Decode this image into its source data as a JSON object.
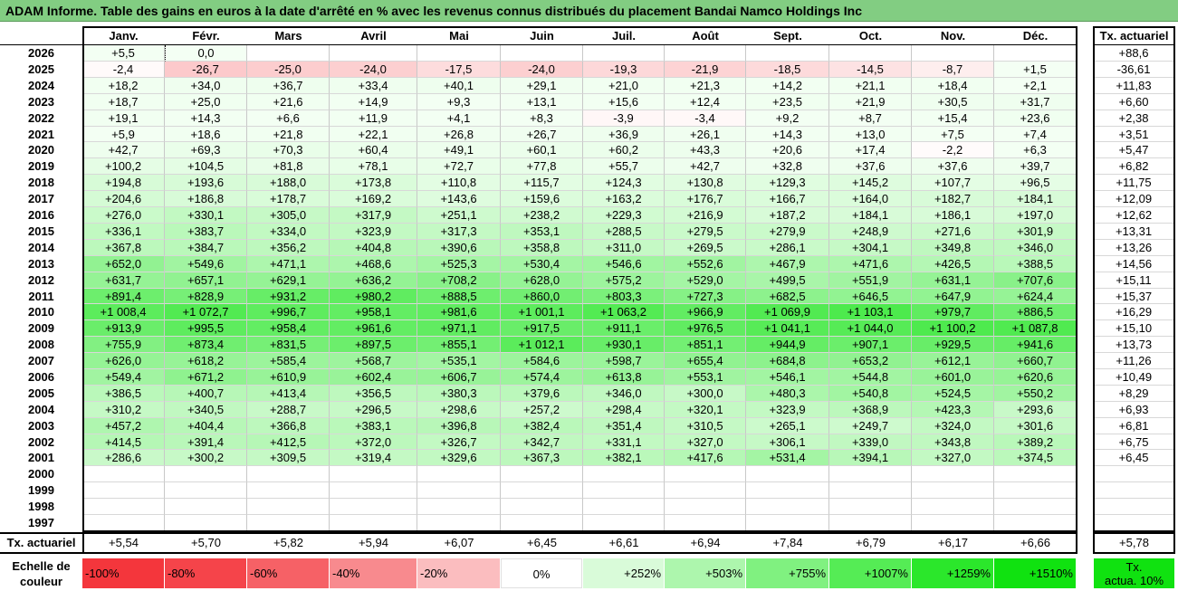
{
  "title": "ADAM Informe. Table des gains en euros à la date d'arrêté en % avec les revenus connus distribués du placement Bandai Namco Holdings Inc",
  "months": [
    "Janv.",
    "Févr.",
    "Mars",
    "Avril",
    "Mai",
    "Juin",
    "Juil.",
    "Août",
    "Sept.",
    "Oct.",
    "Nov.",
    "Déc."
  ],
  "rate_header": "Tx. actuariel",
  "rows": [
    {
      "year": "2026",
      "values": [
        "+5,5",
        "0,0",
        "",
        "",
        "",
        "",
        "",
        "",
        "",
        "",
        "",
        ""
      ],
      "rate": "+88,6"
    },
    {
      "year": "2025",
      "values": [
        "-2,4",
        "-26,7",
        "-25,0",
        "-24,0",
        "-17,5",
        "-24,0",
        "-19,3",
        "-21,9",
        "-18,5",
        "-14,5",
        "-8,7",
        "+1,5"
      ],
      "rate": "-36,61"
    },
    {
      "year": "2024",
      "values": [
        "+18,2",
        "+34,0",
        "+36,7",
        "+33,4",
        "+40,1",
        "+29,1",
        "+21,0",
        "+21,3",
        "+14,2",
        "+21,1",
        "+18,4",
        "+2,1"
      ],
      "rate": "+11,83"
    },
    {
      "year": "2023",
      "values": [
        "+18,7",
        "+25,0",
        "+21,6",
        "+14,9",
        "+9,3",
        "+13,1",
        "+15,6",
        "+12,4",
        "+23,5",
        "+21,9",
        "+30,5",
        "+31,7"
      ],
      "rate": "+6,60"
    },
    {
      "year": "2022",
      "values": [
        "+19,1",
        "+14,3",
        "+6,6",
        "+11,9",
        "+4,1",
        "+8,3",
        "-3,9",
        "-3,4",
        "+9,2",
        "+8,7",
        "+15,4",
        "+23,6"
      ],
      "rate": "+2,38"
    },
    {
      "year": "2021",
      "values": [
        "+5,9",
        "+18,6",
        "+21,8",
        "+22,1",
        "+26,8",
        "+26,7",
        "+36,9",
        "+26,1",
        "+14,3",
        "+13,0",
        "+7,5",
        "+7,4"
      ],
      "rate": "+3,51"
    },
    {
      "year": "2020",
      "values": [
        "+42,7",
        "+69,3",
        "+70,3",
        "+60,4",
        "+49,1",
        "+60,1",
        "+60,2",
        "+43,3",
        "+20,6",
        "+17,4",
        "-2,2",
        "+6,3"
      ],
      "rate": "+5,47"
    },
    {
      "year": "2019",
      "values": [
        "+100,2",
        "+104,5",
        "+81,8",
        "+78,1",
        "+72,7",
        "+77,8",
        "+55,7",
        "+42,7",
        "+32,8",
        "+37,6",
        "+37,6",
        "+39,7"
      ],
      "rate": "+6,82"
    },
    {
      "year": "2018",
      "values": [
        "+194,8",
        "+193,6",
        "+188,0",
        "+173,8",
        "+110,8",
        "+115,7",
        "+124,3",
        "+130,8",
        "+129,3",
        "+145,2",
        "+107,7",
        "+96,5"
      ],
      "rate": "+11,75"
    },
    {
      "year": "2017",
      "values": [
        "+204,6",
        "+186,8",
        "+178,7",
        "+169,2",
        "+143,6",
        "+159,6",
        "+163,2",
        "+176,7",
        "+166,7",
        "+164,0",
        "+182,7",
        "+184,1"
      ],
      "rate": "+12,09"
    },
    {
      "year": "2016",
      "values": [
        "+276,0",
        "+330,1",
        "+305,0",
        "+317,9",
        "+251,1",
        "+238,2",
        "+229,3",
        "+216,9",
        "+187,2",
        "+184,1",
        "+186,1",
        "+197,0"
      ],
      "rate": "+12,62"
    },
    {
      "year": "2015",
      "values": [
        "+336,1",
        "+383,7",
        "+334,0",
        "+323,9",
        "+317,3",
        "+353,1",
        "+288,5",
        "+279,5",
        "+279,9",
        "+248,9",
        "+271,6",
        "+301,9"
      ],
      "rate": "+13,31"
    },
    {
      "year": "2014",
      "values": [
        "+367,8",
        "+384,7",
        "+356,2",
        "+404,8",
        "+390,6",
        "+358,8",
        "+311,0",
        "+269,5",
        "+286,1",
        "+304,1",
        "+349,8",
        "+346,0"
      ],
      "rate": "+13,26"
    },
    {
      "year": "2013",
      "values": [
        "+652,0",
        "+549,6",
        "+471,1",
        "+468,6",
        "+525,3",
        "+530,4",
        "+546,6",
        "+552,6",
        "+467,9",
        "+471,6",
        "+426,5",
        "+388,5"
      ],
      "rate": "+14,56"
    },
    {
      "year": "2012",
      "values": [
        "+631,7",
        "+657,1",
        "+629,1",
        "+636,2",
        "+708,2",
        "+628,0",
        "+575,2",
        "+529,0",
        "+499,5",
        "+551,9",
        "+631,1",
        "+707,6"
      ],
      "rate": "+15,11"
    },
    {
      "year": "2011",
      "values": [
        "+891,4",
        "+828,9",
        "+931,2",
        "+980,2",
        "+888,5",
        "+860,0",
        "+803,3",
        "+727,3",
        "+682,5",
        "+646,5",
        "+647,9",
        "+624,4"
      ],
      "rate": "+15,37"
    },
    {
      "year": "2010",
      "values": [
        "+1 008,4",
        "+1 072,7",
        "+996,7",
        "+958,1",
        "+981,6",
        "+1 001,1",
        "+1 063,2",
        "+966,9",
        "+1 069,9",
        "+1 103,1",
        "+979,7",
        "+886,5"
      ],
      "rate": "+16,29"
    },
    {
      "year": "2009",
      "values": [
        "+913,9",
        "+995,5",
        "+958,4",
        "+961,6",
        "+971,1",
        "+917,5",
        "+911,1",
        "+976,5",
        "+1 041,1",
        "+1 044,0",
        "+1 100,2",
        "+1 087,8"
      ],
      "rate": "+15,10"
    },
    {
      "year": "2008",
      "values": [
        "+755,9",
        "+873,4",
        "+831,5",
        "+897,5",
        "+855,1",
        "+1 012,1",
        "+930,1",
        "+851,1",
        "+944,9",
        "+907,1",
        "+929,5",
        "+941,6"
      ],
      "rate": "+13,73"
    },
    {
      "year": "2007",
      "values": [
        "+626,0",
        "+618,2",
        "+585,4",
        "+568,7",
        "+535,1",
        "+584,6",
        "+598,7",
        "+655,4",
        "+684,8",
        "+653,2",
        "+612,1",
        "+660,7"
      ],
      "rate": "+11,26"
    },
    {
      "year": "2006",
      "values": [
        "+549,4",
        "+671,2",
        "+610,9",
        "+602,4",
        "+606,7",
        "+574,4",
        "+613,8",
        "+553,1",
        "+546,1",
        "+544,8",
        "+601,0",
        "+620,6"
      ],
      "rate": "+10,49"
    },
    {
      "year": "2005",
      "values": [
        "+386,5",
        "+400,7",
        "+413,4",
        "+356,5",
        "+380,3",
        "+379,6",
        "+346,0",
        "+300,0",
        "+480,3",
        "+540,8",
        "+524,5",
        "+550,2"
      ],
      "rate": "+8,29"
    },
    {
      "year": "2004",
      "values": [
        "+310,2",
        "+340,5",
        "+288,7",
        "+296,5",
        "+298,6",
        "+257,2",
        "+298,4",
        "+320,1",
        "+323,9",
        "+368,9",
        "+423,3",
        "+293,6"
      ],
      "rate": "+6,93"
    },
    {
      "year": "2003",
      "values": [
        "+457,2",
        "+404,4",
        "+366,8",
        "+383,1",
        "+396,8",
        "+382,4",
        "+351,4",
        "+310,5",
        "+265,1",
        "+249,7",
        "+324,0",
        "+301,6"
      ],
      "rate": "+6,81"
    },
    {
      "year": "2002",
      "values": [
        "+414,5",
        "+391,4",
        "+412,5",
        "+372,0",
        "+326,7",
        "+342,7",
        "+331,1",
        "+327,0",
        "+306,1",
        "+339,0",
        "+343,8",
        "+389,2"
      ],
      "rate": "+6,75"
    },
    {
      "year": "2001",
      "values": [
        "+286,6",
        "+300,2",
        "+309,5",
        "+319,4",
        "+329,6",
        "+367,3",
        "+382,1",
        "+417,6",
        "+531,4",
        "+394,1",
        "+327,0",
        "+374,5"
      ],
      "rate": "+6,45"
    },
    {
      "year": "2000",
      "values": [
        "",
        "",
        "",
        "",
        "",
        "",
        "",
        "",
        "",
        "",
        "",
        ""
      ],
      "rate": ""
    },
    {
      "year": "1999",
      "values": [
        "",
        "",
        "",
        "",
        "",
        "",
        "",
        "",
        "",
        "",
        "",
        ""
      ],
      "rate": ""
    },
    {
      "year": "1998",
      "values": [
        "",
        "",
        "",
        "",
        "",
        "",
        "",
        "",
        "",
        "",
        "",
        ""
      ],
      "rate": ""
    },
    {
      "year": "1997",
      "values": [
        "",
        "",
        "",
        "",
        "",
        "",
        "",
        "",
        "",
        "",
        "",
        ""
      ],
      "rate": ""
    }
  ],
  "footer": {
    "label": "Tx. actuariel",
    "values": [
      "+5,54",
      "+5,70",
      "+5,82",
      "+5,94",
      "+6,07",
      "+6,45",
      "+6,61",
      "+6,94",
      "+7,84",
      "+6,79",
      "+6,17",
      "+6,66"
    ],
    "rate": "+5,78"
  },
  "legend": {
    "label_line1": "Echelle de",
    "label_line2": "couleur",
    "items": [
      {
        "text": "-100%",
        "color": "#f4363c",
        "align": "left"
      },
      {
        "text": "-80%",
        "color": "#f5444a",
        "align": "left"
      },
      {
        "text": "-60%",
        "color": "#f66166",
        "align": "left"
      },
      {
        "text": "-40%",
        "color": "#f88a8e",
        "align": "left"
      },
      {
        "text": "-20%",
        "color": "#fbbdbf",
        "align": "left"
      },
      {
        "text": "0%",
        "color": "#ffffff",
        "align": "center"
      },
      {
        "text": "+252%",
        "color": "#d9fbd9",
        "align": "right"
      },
      {
        "text": "+503%",
        "color": "#adf6ad",
        "align": "right"
      },
      {
        "text": "+755%",
        "color": "#80f180",
        "align": "right"
      },
      {
        "text": "+1007%",
        "color": "#55ec55",
        "align": "right"
      },
      {
        "text": "+1259%",
        "color": "#2be72b",
        "align": "right"
      },
      {
        "text": "+1510%",
        "color": "#10e210",
        "align": "right"
      }
    ],
    "rate_text_line1": "Tx.",
    "rate_text_line2": "actua. 10%",
    "rate_color": "#10e210"
  }
}
